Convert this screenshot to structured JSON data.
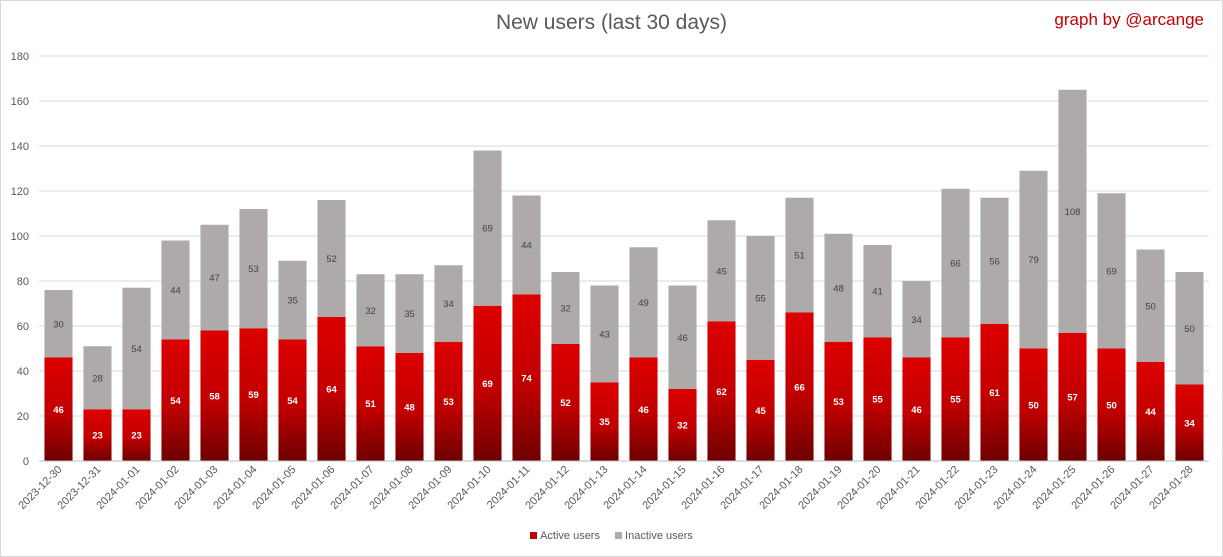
{
  "chart_data": {
    "type": "bar",
    "stacked": true,
    "title": "New users (last 30 days)",
    "credit": "graph by @arcange",
    "categories": [
      "2023-12-30",
      "2023-12-31",
      "2024-01-01",
      "2024-01-02",
      "2024-01-03",
      "2024-01-04",
      "2024-01-05",
      "2024-01-06",
      "2024-01-07",
      "2024-01-08",
      "2024-01-09",
      "2024-01-10",
      "2024-01-11",
      "2024-01-12",
      "2024-01-13",
      "2024-01-14",
      "2024-01-15",
      "2024-01-16",
      "2024-01-17",
      "2024-01-18",
      "2024-01-19",
      "2024-01-20",
      "2024-01-21",
      "2024-01-22",
      "2024-01-23",
      "2024-01-24",
      "2024-01-25",
      "2024-01-26",
      "2024-01-27",
      "2024-01-28"
    ],
    "series": [
      {
        "name": "Active users",
        "color": "#c00000",
        "values": [
          46,
          23,
          23,
          54,
          58,
          59,
          54,
          64,
          51,
          48,
          53,
          69,
          74,
          52,
          35,
          46,
          32,
          62,
          45,
          66,
          53,
          55,
          46,
          55,
          61,
          50,
          57,
          50,
          44,
          34
        ]
      },
      {
        "name": "Inactive users",
        "color": "#aeaaaa",
        "values": [
          30,
          28,
          54,
          44,
          47,
          53,
          35,
          52,
          32,
          35,
          34,
          69,
          44,
          32,
          43,
          49,
          46,
          45,
          55,
          51,
          48,
          41,
          34,
          66,
          56,
          79,
          108,
          69,
          50,
          50
        ]
      }
    ],
    "yticks": [
      0,
      20,
      40,
      60,
      80,
      100,
      120,
      140,
      160,
      180
    ],
    "ylim": [
      0,
      180
    ],
    "grid": true,
    "legend_position": "bottom"
  }
}
